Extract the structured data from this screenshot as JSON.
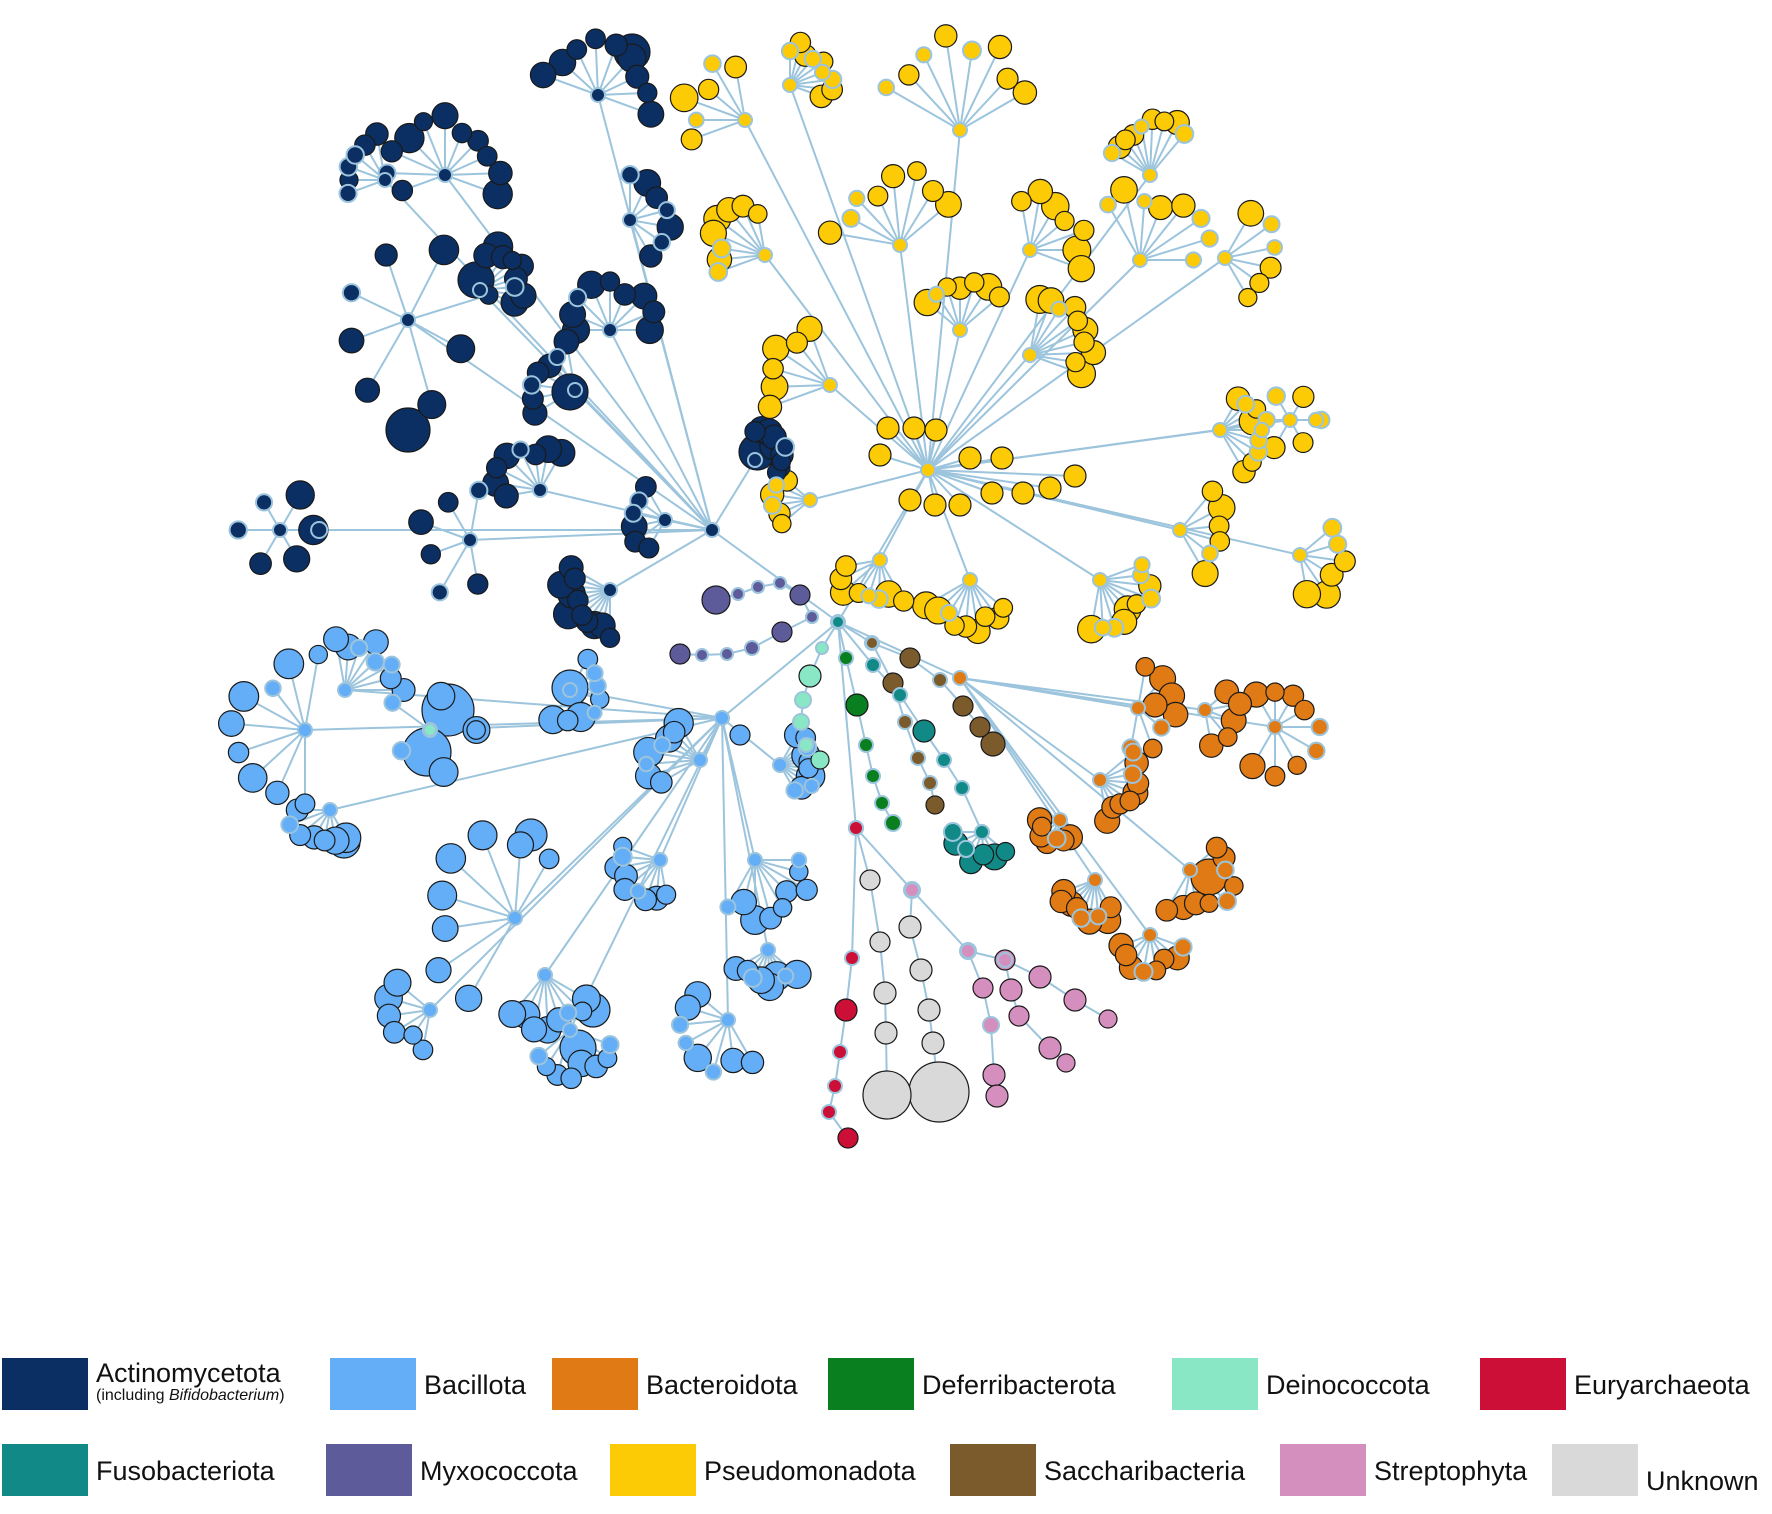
{
  "legend": {
    "items": [
      {
        "key": "actino",
        "label": "Actinomycetota",
        "sublabel_pre": "(including ",
        "sublabel_italic": "Bifidobacterium",
        "sublabel_post": ")",
        "color": "#0b2f63"
      },
      {
        "key": "bacillota",
        "label": "Bacillota",
        "color": "#63aef7"
      },
      {
        "key": "bacteroidota",
        "label": "Bacteroidota",
        "color": "#e07a14"
      },
      {
        "key": "deferri",
        "label": "Deferribacterota",
        "color": "#0a7f1f"
      },
      {
        "key": "deino",
        "label": "Deinococcota",
        "color": "#8ae7c6"
      },
      {
        "key": "eury",
        "label": "Euryarchaeota",
        "color": "#cc0f36"
      },
      {
        "key": "fuso",
        "label": "Fusobacteriota",
        "color": "#118a87"
      },
      {
        "key": "myxo",
        "label": "Myxococcota",
        "color": "#5d5b9a"
      },
      {
        "key": "pseudo",
        "label": "Pseudomonadota",
        "color": "#fccb05"
      },
      {
        "key": "saccha",
        "label": "Saccharibacteria",
        "color": "#7b5b2c"
      },
      {
        "key": "strepto",
        "label": "Streptophyta",
        "color": "#d48fbe"
      },
      {
        "key": "unknown",
        "label": "Unknown",
        "color": "#d9d9d9"
      }
    ]
  },
  "tree": {
    "edge_color": "#9cc4dc",
    "root_color": "#d9d9d9"
  }
}
